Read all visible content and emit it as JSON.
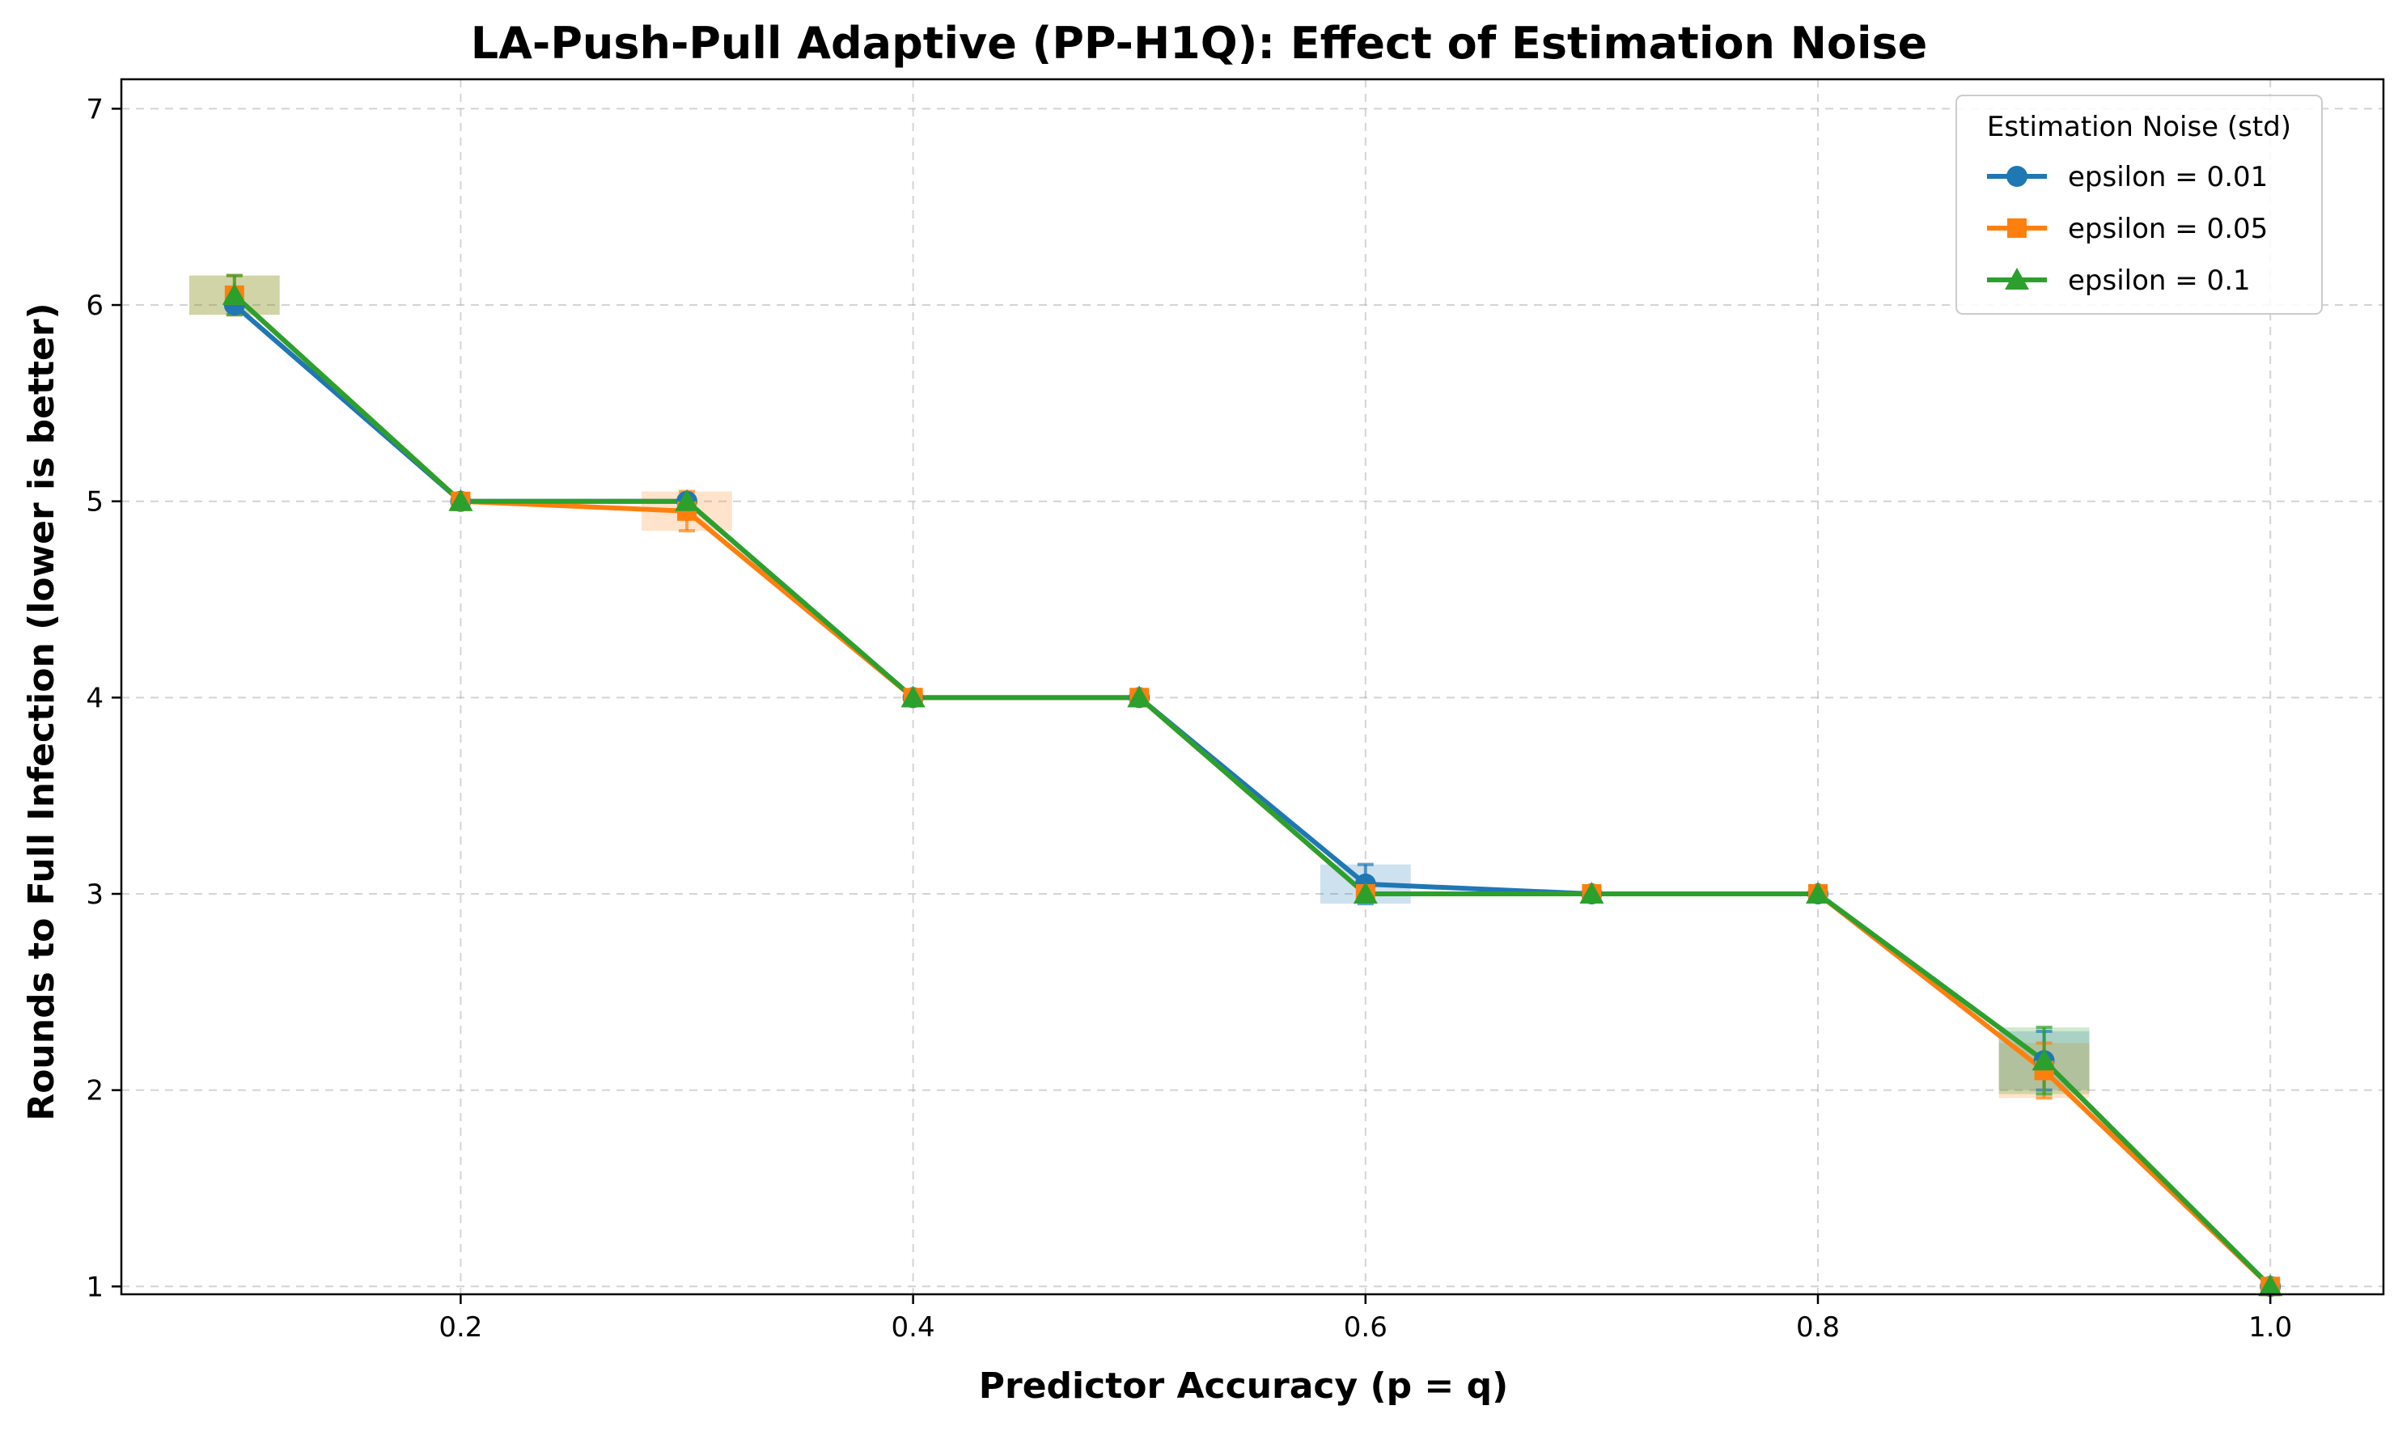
{
  "chart_data": {
    "type": "line",
    "title": "LA-Push-Pull Adaptive (PP-H1Q): Effect of Estimation Noise",
    "xlabel": "Predictor Accuracy (p = q)",
    "ylabel": "Rounds to Full Infection (lower is better)",
    "xlim": [
      0.05,
      1.05
    ],
    "ylim": [
      0.96,
      7.15
    ],
    "x": [
      0.1,
      0.2,
      0.3,
      0.4,
      0.5,
      0.6,
      0.7,
      0.8,
      0.9,
      1.0
    ],
    "xticks": [
      0.2,
      0.4,
      0.6,
      0.8,
      1.0
    ],
    "xtick_labels": [
      "0.2",
      "0.4",
      "0.6",
      "0.8",
      "1.0"
    ],
    "yticks": [
      1,
      2,
      3,
      4,
      5,
      6,
      7
    ],
    "ytick_labels": [
      "1",
      "2",
      "3",
      "4",
      "5",
      "6",
      "7"
    ],
    "grid": true,
    "legend": {
      "title": "Estimation Noise (std)",
      "position": "top-right"
    },
    "series": [
      {
        "name": "epsilon = 0.01",
        "color": "#1f77b4",
        "marker": "circle",
        "values": [
          6.0,
          5.0,
          5.0,
          4.0,
          4.0,
          3.05,
          3.0,
          3.0,
          2.15,
          1.0
        ],
        "error": [
          0.0,
          0.0,
          0.0,
          0.0,
          0.0,
          0.1,
          0.0,
          0.0,
          0.15,
          0.0
        ]
      },
      {
        "name": "epsilon = 0.05",
        "color": "#ff7f0e",
        "marker": "square",
        "values": [
          6.05,
          5.0,
          4.95,
          4.0,
          4.0,
          3.0,
          3.0,
          3.0,
          2.1,
          1.0
        ],
        "error": [
          0.1,
          0.0,
          0.1,
          0.0,
          0.0,
          0.0,
          0.0,
          0.0,
          0.14,
          0.0
        ]
      },
      {
        "name": "epsilon = 0.1",
        "color": "#2ca02c",
        "marker": "triangle",
        "values": [
          6.05,
          5.0,
          5.0,
          4.0,
          4.0,
          3.0,
          3.0,
          3.0,
          2.15,
          1.0
        ],
        "error": [
          0.1,
          0.0,
          0.0,
          0.0,
          0.0,
          0.0,
          0.0,
          0.0,
          0.17,
          0.0
        ]
      }
    ]
  }
}
